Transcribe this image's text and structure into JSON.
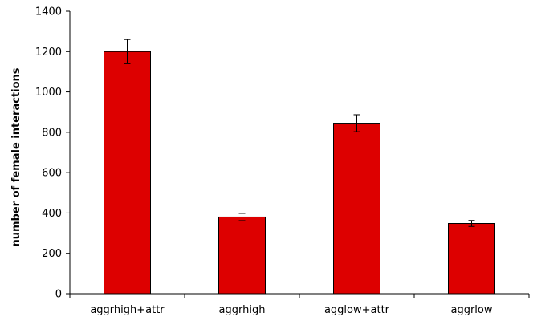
{
  "chart_data": {
    "type": "bar",
    "title": "",
    "xlabel": "",
    "ylabel": "number of female interactions",
    "categories": [
      "aggrhigh+attr",
      "aggrhigh",
      "agglow+attr",
      "aggrlow"
    ],
    "values": [
      1200,
      380,
      845,
      348
    ],
    "error": [
      60,
      18,
      42,
      15
    ],
    "ylim": [
      0,
      1400
    ],
    "yticks": [
      0,
      200,
      400,
      600,
      800,
      1000,
      1200,
      1400
    ],
    "grid": false,
    "legend": "none",
    "bar_color": "#dd0000",
    "bar_edge_color": "#000000"
  }
}
